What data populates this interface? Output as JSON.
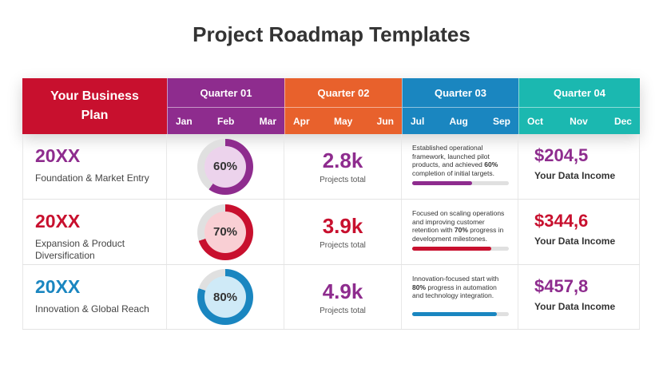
{
  "title": "Project Roadmap Templates",
  "header": {
    "business_plan": "Your Business Plan",
    "quarters": [
      {
        "label": "Quarter 01",
        "months": [
          "Jan",
          "Feb",
          "Mar"
        ],
        "color": "#8e2c8e"
      },
      {
        "label": "Quarter 02",
        "months": [
          "Apr",
          "May",
          "Jun"
        ],
        "color": "#e8612c"
      },
      {
        "label": "Quarter 03",
        "months": [
          "Jul",
          "Aug",
          "Sep"
        ],
        "color": "#1a86c0"
      },
      {
        "label": "Quarter 04",
        "months": [
          "Oct",
          "Nov",
          "Dec"
        ],
        "color": "#1bb8b0"
      }
    ]
  },
  "rows": [
    {
      "year": "20XX",
      "phase": "Foundation & Market Entry",
      "accent": "#8e2c8e",
      "progress_label": "60%",
      "progress": 0.6,
      "ring_bg": "#e0e0e0",
      "ring_inner": "#ecd3ec",
      "projects_value": "2.8k",
      "projects_label": "Projects total",
      "description_parts": [
        "Established operational framework, launched pilot products, and achieved ",
        "60%",
        " completion of initial targets."
      ],
      "bar_fill": 0.62,
      "income": "$204,5",
      "income_label": "Your Data Income"
    },
    {
      "year": "20XX",
      "phase": "Expansion & Product Diversification",
      "accent": "#c8102e",
      "progress_label": "70%",
      "progress": 0.7,
      "ring_bg": "#e0e0e0",
      "ring_inner": "#f9cfd4",
      "projects_value": "3.9k",
      "projects_label": "Projects total",
      "description_parts": [
        "Focused on scaling operations and improving customer retention with ",
        "70%",
        " progress in development milestones."
      ],
      "bar_fill": 0.82,
      "income": "$344,6",
      "income_label": "Your Data Income"
    },
    {
      "year": "20XX",
      "phase": "Innovation & Global Reach",
      "accent": "#1a86c0",
      "progress_label": "80%",
      "progress": 0.8,
      "ring_bg": "#e0e0e0",
      "ring_inner": "#cfeaf7",
      "projects_value": "4.9k",
      "projects_label": "Projects total",
      "description_parts": [
        "Innovation-focused start with ",
        "80%",
        " progress in automation and technology integration."
      ],
      "bar_fill": 0.88,
      "income": "$457,8",
      "income_label": "Your Data Income"
    }
  ],
  "colors": {
    "title": "#333333",
    "business_plan_bg": "#c8102e",
    "projects_value": "#8e2c8e",
    "income_purple": "#8e2c8e",
    "income_red": "#c8102e"
  }
}
